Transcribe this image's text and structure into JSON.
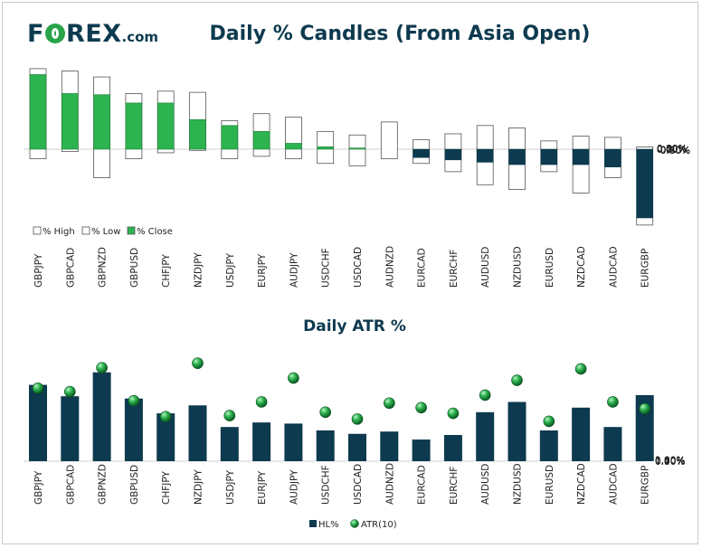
{
  "logo": {
    "brand_text": "FOREX",
    "brand_suffix": ".com"
  },
  "colors": {
    "dark": "#0d3a4f",
    "green": "#2db34f",
    "axis_text": "#222222",
    "border": "#555555"
  },
  "chart_data": [
    {
      "type": "candlestick",
      "title": "Daily % Candles (From Asia Open)",
      "categories": [
        "GBPJPY",
        "GBPCAD",
        "GBPNZD",
        "GBPUSD",
        "CHFJPY",
        "NZDJPY",
        "USDJPY",
        "EURJPY",
        "AUDJPY",
        "USDCHF",
        "USDCAD",
        "AUDNZD",
        "EURCAD",
        "EURCHF",
        "AUDUSD",
        "NZDUSD",
        "EURUSD",
        "NZDCAD",
        "AUDCAD",
        "EURGBP"
      ],
      "high": [
        0.68,
        0.66,
        0.61,
        0.47,
        0.49,
        0.48,
        0.24,
        0.3,
        0.27,
        0.15,
        0.12,
        0.23,
        0.08,
        0.13,
        0.2,
        0.18,
        0.07,
        0.11,
        0.1,
        0.02
      ],
      "low": [
        -0.08,
        -0.02,
        -0.24,
        -0.08,
        -0.03,
        -0.01,
        -0.08,
        -0.06,
        -0.08,
        -0.12,
        -0.14,
        -0.08,
        -0.12,
        -0.19,
        -0.3,
        -0.34,
        -0.19,
        -0.37,
        -0.24,
        -0.64
      ],
      "close": [
        0.63,
        0.47,
        0.46,
        0.39,
        0.39,
        0.25,
        0.2,
        0.15,
        0.05,
        0.02,
        0.01,
        0.0,
        -0.07,
        -0.09,
        -0.11,
        -0.13,
        -0.13,
        -0.13,
        -0.15,
        -0.58
      ],
      "ylim": [
        -0.8,
        0.8
      ],
      "yticks": [
        "0.80%",
        "0.60%",
        "0.40%",
        "0.20%",
        "0.00%",
        "-0.20%",
        "-0.40%",
        "-0.60%",
        "-0.80%"
      ],
      "legend": [
        "% High",
        "% Low",
        "% Close"
      ]
    },
    {
      "type": "bar",
      "title": "Daily ATR %",
      "categories": [
        "GBPJPY",
        "GBPCAD",
        "GBPNZD",
        "GBPUSD",
        "CHFJPY",
        "NZDJPY",
        "USDJPY",
        "EURJPY",
        "AUDJPY",
        "USDCHF",
        "USDCAD",
        "AUDNZD",
        "EURCAD",
        "EURCHF",
        "AUDUSD",
        "NZDUSD",
        "EURUSD",
        "NZDCAD",
        "AUDCAD",
        "EURGBP"
      ],
      "series": [
        {
          "name": "HL%",
          "values": [
            0.67,
            0.57,
            0.78,
            0.55,
            0.42,
            0.49,
            0.3,
            0.34,
            0.33,
            0.27,
            0.24,
            0.26,
            0.19,
            0.23,
            0.43,
            0.52,
            0.27,
            0.47,
            0.3,
            0.58
          ]
        },
        {
          "name": "ATR(10)",
          "values": [
            0.64,
            0.61,
            0.82,
            0.53,
            0.39,
            0.86,
            0.4,
            0.52,
            0.73,
            0.43,
            0.37,
            0.51,
            0.47,
            0.42,
            0.58,
            0.71,
            0.35,
            0.81,
            0.52,
            0.46
          ]
        }
      ],
      "ylim": [
        0,
        1.0
      ],
      "yticks": [
        "1.00%",
        "0.80%",
        "0.60%",
        "0.40%",
        "0.20%",
        "0.00%"
      ],
      "legend": [
        "HL%",
        "ATR(10)"
      ]
    }
  ]
}
